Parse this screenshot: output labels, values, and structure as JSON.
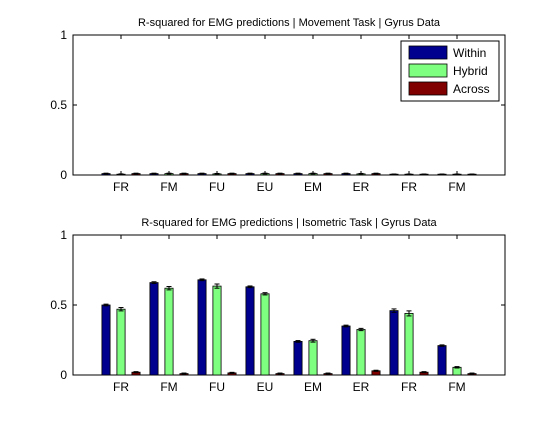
{
  "chart_data": [
    {
      "type": "bar",
      "title": "R-squared for EMG predictions | Movement Task | Gyrus Data",
      "xlabel": "",
      "ylabel": "",
      "categories": [
        "FR",
        "FM",
        "FU",
        "EU",
        "EM",
        "ER",
        "FR",
        "FM"
      ],
      "ylim": [
        0,
        1
      ],
      "yticks": [
        "0",
        "0.5",
        "1"
      ],
      "grid": false,
      "legend": {
        "position": "top-right",
        "entries": [
          "Within",
          "Hybrid",
          "Across"
        ]
      },
      "series": [
        {
          "name": "Within",
          "color": "#00008f",
          "values": [
            0.01,
            0.01,
            0.01,
            0.01,
            0.01,
            0.01,
            0.005,
            0.005
          ],
          "errors": [
            0.003,
            0.003,
            0.003,
            0.003,
            0.003,
            0.003,
            0.002,
            0.002
          ]
        },
        {
          "name": "Hybrid",
          "color": "#7fff7f",
          "values": [
            0.005,
            0.01,
            0.008,
            0.01,
            0.01,
            0.008,
            0.005,
            0.005
          ],
          "errors": [
            0.003,
            0.003,
            0.003,
            0.003,
            0.003,
            0.003,
            0.002,
            0.002
          ]
        },
        {
          "name": "Across",
          "color": "#800000",
          "values": [
            0.01,
            0.01,
            0.01,
            0.01,
            0.01,
            0.01,
            0.005,
            0.005
          ],
          "errors": [
            0.003,
            0.003,
            0.003,
            0.003,
            0.003,
            0.003,
            0.002,
            0.002
          ]
        }
      ]
    },
    {
      "type": "bar",
      "title": "R-squared for EMG predictions | Isometric Task | Gyrus Data",
      "xlabel": "",
      "ylabel": "",
      "categories": [
        "FR",
        "FM",
        "FU",
        "EU",
        "EM",
        "ER",
        "FR",
        "FM"
      ],
      "ylim": [
        0,
        1
      ],
      "yticks": [
        "0",
        "0.5",
        "1"
      ],
      "grid": false,
      "series": [
        {
          "name": "Within",
          "color": "#00008f",
          "values": [
            0.5,
            0.66,
            0.68,
            0.63,
            0.24,
            0.35,
            0.46,
            0.21
          ],
          "errors": [
            0.006,
            0.006,
            0.006,
            0.006,
            0.006,
            0.006,
            0.012,
            0.005
          ]
        },
        {
          "name": "Hybrid",
          "color": "#7fff7f",
          "values": [
            0.47,
            0.62,
            0.635,
            0.58,
            0.245,
            0.325,
            0.44,
            0.055
          ],
          "errors": [
            0.012,
            0.012,
            0.015,
            0.008,
            0.01,
            0.008,
            0.018,
            0.005
          ]
        },
        {
          "name": "Across",
          "color": "#800000",
          "values": [
            0.02,
            0.01,
            0.015,
            0.01,
            0.01,
            0.03,
            0.02,
            0.01
          ],
          "errors": [
            0.004,
            0.004,
            0.004,
            0.004,
            0.004,
            0.004,
            0.004,
            0.004
          ]
        }
      ]
    }
  ]
}
